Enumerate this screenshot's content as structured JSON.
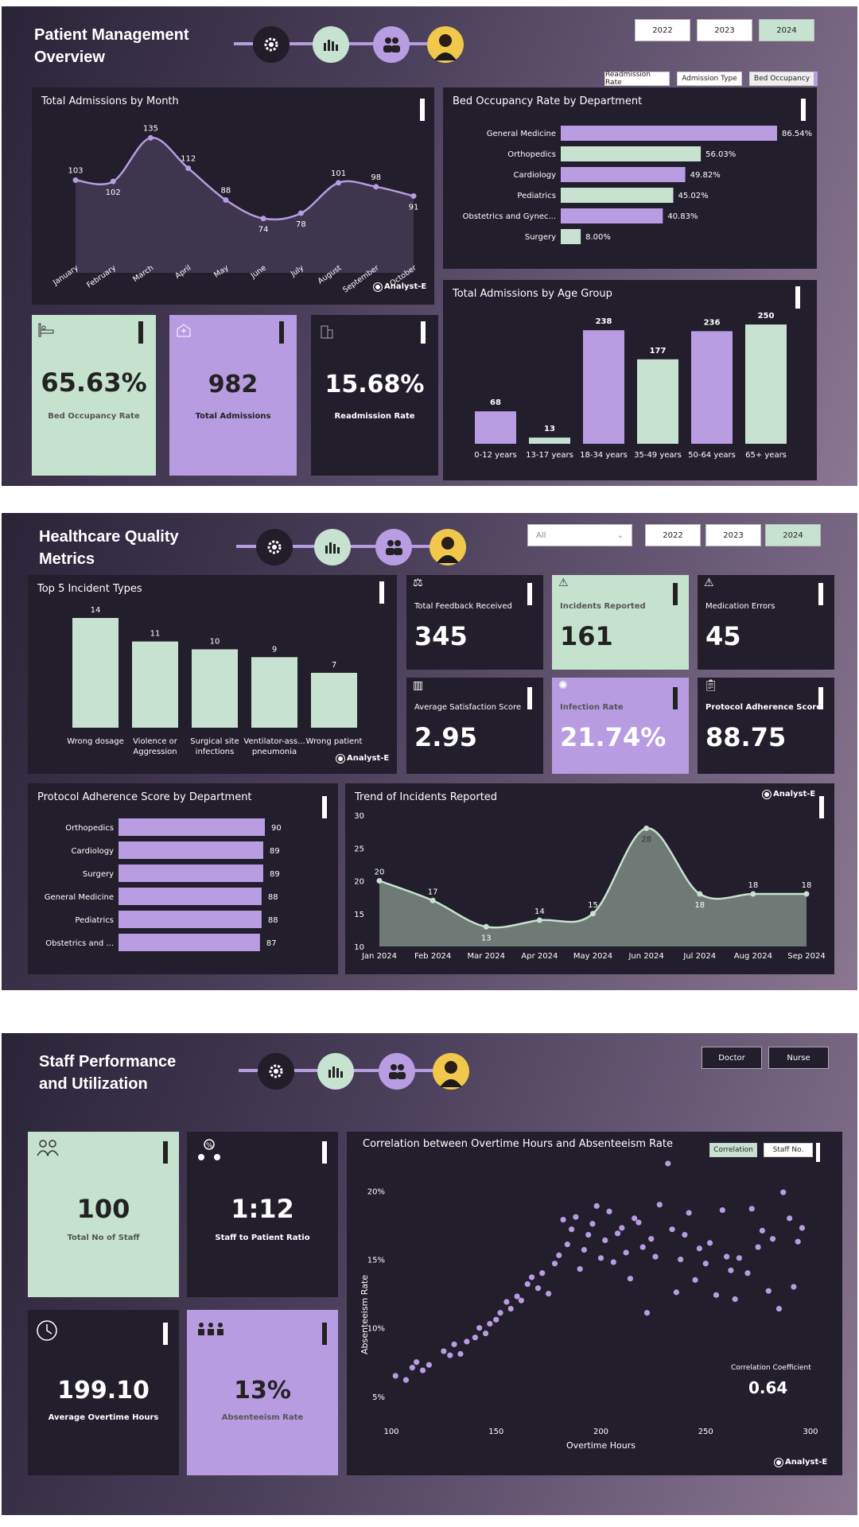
{
  "section1": {
    "title_line1": "Patient Management",
    "title_line2": "Overview",
    "years": [
      "2022",
      "2023",
      "2024"
    ],
    "selected_year": "2024",
    "toggles": [
      "Readmission Rate",
      "Admission Type",
      "Bed Occupancy"
    ],
    "admissions_by_month": {
      "title": "Total Admissions by Month"
    },
    "bed_occupancy_dept": {
      "title": "Bed Occupancy Rate by Department"
    },
    "age_group": {
      "title": "Total Admissions by Age Group"
    },
    "kpis": [
      {
        "value": "65.63%",
        "label": "Bed Occupancy Rate"
      },
      {
        "value": "982",
        "label": "Total Admissions"
      },
      {
        "value": "15.68%",
        "label": "Readmission Rate"
      }
    ],
    "analyst": "Analyst-E"
  },
  "section2": {
    "title_line1": "Healthcare Quality",
    "title_line2": "Metrics",
    "dropdown_value": "All",
    "years": [
      "2022",
      "2023",
      "2024"
    ],
    "selected_year": "2024",
    "incident_types": {
      "title": "Top 5 Incident Types"
    },
    "kpis": [
      {
        "label": "Total Feedback Received",
        "value": "345"
      },
      {
        "label": "Incidents Reported",
        "value": "161"
      },
      {
        "label": "Medication Errors",
        "value": "45"
      },
      {
        "label": "Average Satisfaction Score",
        "value": "2.95"
      },
      {
        "label": "Infection Rate",
        "value": "21.74%"
      },
      {
        "label": "Protocol Adherence Score",
        "value": "88.75"
      }
    ],
    "protocol_dept": {
      "title": "Protocol Adherence Score by Department"
    },
    "trend": {
      "title": "Trend of Incidents Reported"
    },
    "analyst": "Analyst-E"
  },
  "section3": {
    "title_line1": "Staff Performance",
    "title_line2": "and Utilization",
    "roles": [
      "Doctor",
      "Nurse"
    ],
    "kpis": [
      {
        "value": "100",
        "label": "Total No of Staff"
      },
      {
        "value": "1:12",
        "label": "Staff to Patient Ratio"
      },
      {
        "value": "199.10",
        "label": "Average Overtime Hours"
      },
      {
        "value": "13%",
        "label": "Absenteeism Rate"
      }
    ],
    "scatter": {
      "title": "Correlation between Overtime Hours and Absenteeism Rate",
      "toggle1": "Correlation",
      "toggle2": "Staff No.",
      "coef_label": "Correlation Coefficient",
      "coef_value": "0.64"
    },
    "analyst": "Analyst-E"
  },
  "chart_data": [
    {
      "type": "area",
      "title": "Total Admissions by Month",
      "categories": [
        "January",
        "February",
        "March",
        "April",
        "May",
        "June",
        "July",
        "August",
        "September",
        "October"
      ],
      "values": [
        103,
        102,
        135,
        112,
        88,
        74,
        78,
        101,
        98,
        91
      ],
      "color": "#b59de0"
    },
    {
      "type": "bar",
      "orientation": "horizontal",
      "title": "Bed Occupancy Rate by Department",
      "categories": [
        "General Medicine",
        "Orthopedics",
        "Cardiology",
        "Pediatrics",
        "Obstetrics and Gynec...",
        "Surgery"
      ],
      "values": [
        86.54,
        56.03,
        49.82,
        45.02,
        40.83,
        8.0
      ],
      "labels": [
        "86.54%",
        "56.03%",
        "49.82%",
        "45.02%",
        "40.83%",
        "8.00%"
      ]
    },
    {
      "type": "bar",
      "title": "Total Admissions by Age Group",
      "categories": [
        "0-12 years",
        "13-17 years",
        "18-34 years",
        "35-49 years",
        "50-64 years",
        "65+ years"
      ],
      "values": [
        68,
        13,
        238,
        177,
        236,
        250
      ]
    },
    {
      "type": "bar",
      "title": "Top 5 Incident Types",
      "categories": [
        "Wrong dosage",
        "Violence or Aggression",
        "Surgical site infections",
        "Ventilator-ass... pneumonia",
        "Wrong patient"
      ],
      "values": [
        14,
        11,
        10,
        9,
        7
      ]
    },
    {
      "type": "bar",
      "orientation": "horizontal",
      "title": "Protocol Adherence Score by Department",
      "categories": [
        "Orthopedics",
        "Cardiology",
        "Surgery",
        "General Medicine",
        "Pediatrics",
        "Obstetrics and ..."
      ],
      "values": [
        90,
        89,
        89,
        88,
        88,
        87
      ]
    },
    {
      "type": "area",
      "title": "Trend of Incidents Reported",
      "categories": [
        "Jan 2024",
        "Feb 2024",
        "Mar 2024",
        "Apr 2024",
        "May 2024",
        "Jun 2024",
        "Jul 2024",
        "Aug 2024",
        "Sep 2024"
      ],
      "values": [
        20,
        17,
        13,
        14,
        15,
        28,
        18,
        18,
        18
      ],
      "ylim": [
        10,
        30
      ],
      "yticks": [
        10,
        15,
        20,
        25,
        30
      ]
    },
    {
      "type": "scatter",
      "title": "Correlation between Overtime Hours and Absenteeism Rate",
      "xlabel": "Overtime Hours",
      "ylabel": "Absenteeism Rate",
      "xlim": [
        100,
        300
      ],
      "ylim": [
        4,
        22
      ],
      "xticks": [
        100,
        150,
        200,
        250,
        300
      ],
      "yticks": [
        "5%",
        "10%",
        "15%",
        "20%"
      ],
      "points": [
        [
          102,
          6.5
        ],
        [
          107,
          6.2
        ],
        [
          110,
          7.1
        ],
        [
          112,
          7.5
        ],
        [
          115,
          6.9
        ],
        [
          118,
          7.3
        ],
        [
          125,
          8.3
        ],
        [
          128,
          8.0
        ],
        [
          130,
          8.8
        ],
        [
          133,
          8.1
        ],
        [
          136,
          9.0
        ],
        [
          140,
          9.3
        ],
        [
          142,
          10.0
        ],
        [
          145,
          9.6
        ],
        [
          147,
          10.3
        ],
        [
          150,
          10.6
        ],
        [
          152,
          11.1
        ],
        [
          155,
          11.9
        ],
        [
          157,
          11.4
        ],
        [
          160,
          12.3
        ],
        [
          162,
          12.0
        ],
        [
          165,
          13.2
        ],
        [
          167,
          13.7
        ],
        [
          170,
          12.9
        ],
        [
          172,
          14.0
        ],
        [
          175,
          12.5
        ],
        [
          178,
          14.7
        ],
        [
          180,
          15.3
        ],
        [
          182,
          17.9
        ],
        [
          184,
          16.1
        ],
        [
          186,
          17.2
        ],
        [
          188,
          18.1
        ],
        [
          190,
          14.3
        ],
        [
          192,
          15.7
        ],
        [
          194,
          16.8
        ],
        [
          196,
          17.6
        ],
        [
          198,
          18.9
        ],
        [
          200,
          15.1
        ],
        [
          202,
          16.4
        ],
        [
          204,
          18.5
        ],
        [
          206,
          14.8
        ],
        [
          208,
          16.9
        ],
        [
          210,
          17.3
        ],
        [
          212,
          15.5
        ],
        [
          214,
          13.6
        ],
        [
          216,
          18.0
        ],
        [
          218,
          17.7
        ],
        [
          220,
          15.9
        ],
        [
          222,
          11.1
        ],
        [
          224,
          16.5
        ],
        [
          226,
          15.2
        ],
        [
          228,
          19.0
        ],
        [
          232,
          22.0
        ],
        [
          234,
          17.2
        ],
        [
          236,
          12.6
        ],
        [
          238,
          15.0
        ],
        [
          240,
          16.8
        ],
        [
          242,
          18.4
        ],
        [
          245,
          13.5
        ],
        [
          247,
          15.8
        ],
        [
          250,
          14.7
        ],
        [
          252,
          16.2
        ],
        [
          255,
          12.4
        ],
        [
          258,
          18.6
        ],
        [
          260,
          15.2
        ],
        [
          262,
          14.2
        ],
        [
          264,
          12.1
        ],
        [
          266,
          15.1
        ],
        [
          270,
          14.0
        ],
        [
          272,
          18.7
        ],
        [
          275,
          15.9
        ],
        [
          277,
          17.1
        ],
        [
          280,
          12.7
        ],
        [
          282,
          16.5
        ],
        [
          285,
          11.4
        ],
        [
          287,
          19.9
        ],
        [
          290,
          18.0
        ],
        [
          292,
          13.0
        ],
        [
          294,
          16.3
        ],
        [
          296,
          17.3
        ]
      ]
    }
  ]
}
